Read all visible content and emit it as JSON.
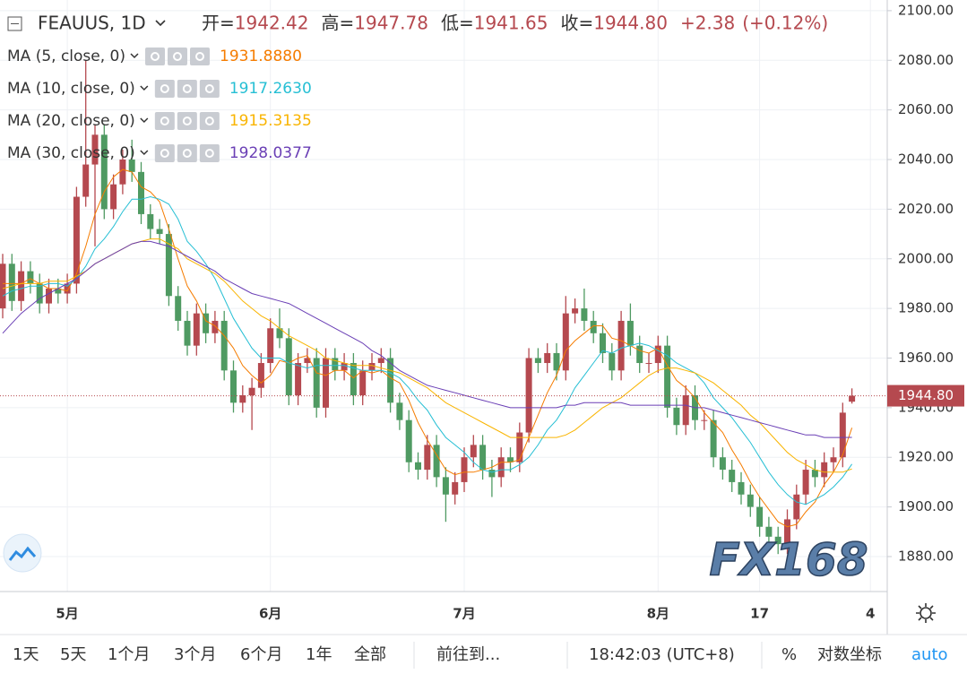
{
  "header": {
    "symbol": "FEAUUS, 1D",
    "fields": [
      {
        "label": "开=",
        "value": "1942.42"
      },
      {
        "label": "高=",
        "value": "1947.78"
      },
      {
        "label": "低=",
        "value": "1941.65"
      },
      {
        "label": "收=",
        "value": "1944.80"
      }
    ],
    "change": "+2.38",
    "change_pct": "(+0.12%)"
  },
  "toolbar": {
    "ranges": [
      "1天",
      "5天",
      "1个月",
      "3个月",
      "6个月",
      "1年",
      "全部"
    ],
    "goto": "前往到...",
    "time": "18:42:03 (UTC+8)",
    "percent": "%",
    "log": "对数坐标",
    "auto": "auto"
  },
  "watermark": "FX168",
  "chart_data": {
    "type": "candlestick",
    "categories": [
      null,
      null,
      null,
      null,
      null,
      null,
      null,
      "5月",
      null,
      null,
      null,
      null,
      null,
      null,
      null,
      null,
      null,
      null,
      null,
      null,
      null,
      null,
      null,
      null,
      null,
      null,
      null,
      null,
      null,
      "6月",
      null,
      null,
      null,
      null,
      null,
      null,
      null,
      null,
      null,
      null,
      null,
      null,
      null,
      null,
      null,
      null,
      null,
      null,
      null,
      null,
      "7月",
      null,
      null,
      null,
      null,
      null,
      null,
      null,
      null,
      null,
      null,
      null,
      null,
      null,
      null,
      null,
      null,
      null,
      null,
      null,
      null,
      "8月",
      null,
      null,
      null,
      null,
      null,
      null,
      null,
      null,
      null,
      null,
      "17",
      null,
      null,
      null,
      null,
      null,
      null,
      null,
      null,
      null,
      null,
      null,
      "4"
    ],
    "open": [
      1980,
      1998,
      1983,
      1995,
      1990,
      1982,
      1988,
      1986,
      1990,
      2025,
      2038,
      2050,
      2020,
      2030,
      2040,
      2035,
      2018,
      2012,
      2010,
      1985,
      1975,
      1965,
      1978,
      1970,
      1975,
      1955,
      1942,
      1945,
      1948,
      1958,
      1972,
      1968,
      1945,
      1958,
      1960,
      1940,
      1960,
      1955,
      1958,
      1945,
      1955,
      1958,
      1960,
      1942,
      1935,
      1918,
      1915,
      1925,
      1912,
      1905,
      1910,
      1920,
      1925,
      1915,
      1912,
      1920,
      1918,
      1930,
      1960,
      1958,
      1962,
      1955,
      1978,
      1980,
      1975,
      1970,
      1962,
      1955,
      1975,
      1965,
      1958,
      1958,
      1965,
      1940,
      1933,
      1945,
      1935,
      1935,
      1920,
      1915,
      1910,
      1905,
      1900,
      1892,
      1888,
      1885,
      1895,
      1905,
      1915,
      1912,
      1918,
      1920,
      1942.42,
      null,
      null
    ],
    "high": [
      2002,
      2002,
      1999,
      1999,
      1994,
      1992,
      1992,
      1994,
      2029,
      2080,
      2054,
      2054,
      2034,
      2044,
      2048,
      2039,
      2022,
      2016,
      2014,
      1989,
      1979,
      1982,
      1982,
      1979,
      1979,
      1959,
      1949,
      1952,
      1962,
      1976,
      1980,
      1972,
      1962,
      1964,
      1964,
      1964,
      1964,
      1962,
      1962,
      1959,
      1962,
      1964,
      1964,
      1946,
      1939,
      1922,
      1929,
      1929,
      1916,
      1914,
      1924,
      1929,
      1929,
      1919,
      1924,
      1924,
      1934,
      1964,
      1964,
      1966,
      1966,
      1985,
      1984,
      1988,
      1979,
      1974,
      1966,
      1979,
      1982,
      1969,
      1962,
      1969,
      1969,
      1944,
      1949,
      1949,
      1939,
      1939,
      1924,
      1919,
      1914,
      1909,
      1904,
      1896,
      1892,
      1899,
      1909,
      1919,
      1919,
      1922,
      1924,
      1942,
      1947.78,
      null,
      null
    ],
    "low": [
      1976,
      1979,
      1979,
      1986,
      1978,
      1978,
      1982,
      1982,
      1986,
      2021,
      2005,
      2016,
      2016,
      2026,
      2031,
      2014,
      2008,
      2006,
      1981,
      1971,
      1961,
      1961,
      1966,
      1966,
      1951,
      1938,
      1938,
      1931,
      1944,
      1954,
      1964,
      1941,
      1941,
      1954,
      1936,
      1936,
      1951,
      1951,
      1941,
      1941,
      1951,
      1954,
      1938,
      1931,
      1914,
      1911,
      1911,
      1908,
      1894,
      1901,
      1906,
      1916,
      1911,
      1904,
      1908,
      1914,
      1914,
      1926,
      1954,
      1954,
      1951,
      1951,
      1974,
      1971,
      1966,
      1958,
      1951,
      1951,
      1961,
      1954,
      1954,
      1954,
      1936,
      1929,
      1929,
      1931,
      1931,
      1916,
      1911,
      1906,
      1901,
      1896,
      1888,
      1884,
      1881,
      1881,
      1891,
      1901,
      1908,
      1908,
      1914,
      1916,
      1941.65,
      null,
      null
    ],
    "close": [
      1998,
      1983,
      1995,
      1990,
      1982,
      1988,
      1986,
      1990,
      2025,
      2038,
      2050,
      2020,
      2030,
      2040,
      2035,
      2018,
      2012,
      2010,
      1985,
      1975,
      1965,
      1978,
      1970,
      1975,
      1955,
      1942,
      1945,
      1948,
      1958,
      1972,
      1968,
      1945,
      1958,
      1960,
      1940,
      1960,
      1955,
      1958,
      1945,
      1955,
      1958,
      1960,
      1942,
      1935,
      1918,
      1915,
      1925,
      1912,
      1905,
      1910,
      1920,
      1925,
      1915,
      1912,
      1920,
      1918,
      1930,
      1960,
      1958,
      1962,
      1955,
      1978,
      1980,
      1975,
      1970,
      1962,
      1955,
      1975,
      1965,
      1958,
      1958,
      1965,
      1940,
      1933,
      1945,
      1935,
      1935,
      1920,
      1915,
      1910,
      1905,
      1900,
      1892,
      1888,
      1885,
      1895,
      1905,
      1915,
      1912,
      1918,
      1920,
      1938,
      1944.8,
      null,
      null
    ],
    "up_color": "#b5494f",
    "down_color": "#4f9a62",
    "series": [
      {
        "name": "MA (5, close, 0)",
        "color": "#f57c00",
        "legend_value": "1931.8880",
        "values": [
          1990,
          1990,
          1990,
          1992,
          1990,
          1988,
          1988,
          1987,
          1994,
          2005,
          2018,
          2027,
          2033,
          2036,
          2035,
          2029,
          2027,
          2023,
          2012,
          2000,
          1989,
          1983,
          1975,
          1973,
          1969,
          1964,
          1957,
          1953,
          1950,
          1953,
          1959,
          1958,
          1960,
          1961,
          1954,
          1953,
          1955,
          1955,
          1952,
          1955,
          1954,
          1955,
          1952,
          1950,
          1943,
          1934,
          1927,
          1921,
          1915,
          1913,
          1914,
          1914,
          1915,
          1916,
          1918,
          1918,
          1919,
          1928,
          1937,
          1946,
          1953,
          1963,
          1967,
          1970,
          1973,
          1973,
          1968,
          1967,
          1965,
          1963,
          1962,
          1964,
          1957,
          1951,
          1948,
          1944,
          1938,
          1934,
          1930,
          1923,
          1917,
          1910,
          1904,
          1899,
          1894,
          1892,
          1893,
          1898,
          1902,
          1909,
          1914,
          1921,
          1931.888,
          null,
          null
        ]
      },
      {
        "name": "MA (10, close, 0)",
        "color": "#26bfd4",
        "legend_value": "1917.2630",
        "values": [
          1985,
          1987,
          1988,
          1989,
          1989,
          1990,
          1990,
          1989,
          1992,
          1997,
          2004,
          2008,
          2013,
          2019,
          2024,
          2024,
          2025,
          2024,
          2022,
          2016,
          2007,
          2003,
          1998,
          1992,
          1984,
          1976,
          1970,
          1964,
          1960,
          1960,
          1960,
          1958,
          1957,
          1956,
          1957,
          1957,
          1957,
          1957,
          1956,
          1955,
          1955,
          1955,
          1954,
          1952,
          1948,
          1943,
          1939,
          1933,
          1928,
          1925,
          1922,
          1918,
          1915,
          1914,
          1915,
          1915,
          1917,
          1920,
          1925,
          1931,
          1935,
          1941,
          1948,
          1953,
          1958,
          1963,
          1962,
          1964,
          1965,
          1966,
          1965,
          1963,
          1961,
          1958,
          1956,
          1954,
          1950,
          1944,
          1940,
          1936,
          1931,
          1926,
          1920,
          1914,
          1909,
          1905,
          1902,
          1901,
          1903,
          1905,
          1908,
          1912,
          1917.263,
          null,
          null
        ]
      },
      {
        "name": "MA (20, close, 0)",
        "color": "#f9b400",
        "legend_value": "1915.3135",
        "values": [
          1988,
          1989,
          1990,
          1990,
          1990,
          1991,
          1991,
          1991,
          1993,
          1995,
          1998,
          2000,
          2002,
          2004,
          2006,
          2007,
          2008,
          2008,
          2006,
          2004,
          2000,
          1998,
          1996,
          1994,
          1991,
          1987,
          1983,
          1980,
          1977,
          1975,
          1972,
          1969,
          1967,
          1965,
          1963,
          1960,
          1959,
          1958,
          1957,
          1957,
          1957,
          1956,
          1955,
          1954,
          1952,
          1950,
          1948,
          1945,
          1942,
          1940,
          1938,
          1936,
          1934,
          1932,
          1930,
          1928,
          1928,
          1928,
          1928,
          1928,
          1928,
          1929,
          1931,
          1934,
          1937,
          1940,
          1942,
          1944,
          1947,
          1950,
          1953,
          1955,
          1956,
          1956,
          1955,
          1954,
          1952,
          1950,
          1947,
          1944,
          1941,
          1937,
          1934,
          1930,
          1926,
          1922,
          1919,
          1917,
          1915,
          1914,
          1914,
          1914,
          1915.3135,
          null,
          null
        ]
      },
      {
        "name": "MA (30, close, 0)",
        "color": "#6a3fb5",
        "legend_value": "1928.0377",
        "values": [
          1970,
          1974,
          1978,
          1981,
          1984,
          1986,
          1988,
          1990,
          1992,
          1995,
          1998,
          2000,
          2002,
          2004,
          2006,
          2007,
          2007,
          2006,
          2005,
          2003,
          2001,
          1999,
          1997,
          1995,
          1992,
          1990,
          1988,
          1986,
          1985,
          1984,
          1983,
          1982,
          1980,
          1978,
          1976,
          1974,
          1972,
          1970,
          1968,
          1966,
          1963,
          1961,
          1958,
          1955,
          1953,
          1951,
          1949,
          1948,
          1947,
          1946,
          1945,
          1944,
          1943,
          1942,
          1941,
          1940,
          1940,
          1940,
          1940,
          1940,
          1940,
          1941,
          1941,
          1942,
          1942,
          1942,
          1942,
          1942,
          1941,
          1941,
          1941,
          1941,
          1941,
          1941,
          1941,
          1940,
          1940,
          1939,
          1938,
          1937,
          1936,
          1935,
          1934,
          1933,
          1932,
          1931,
          1930,
          1929,
          1929,
          1928,
          1928,
          1928,
          1928.0377,
          null,
          null
        ]
      }
    ],
    "ylim": [
      1865.9,
      2104.3
    ],
    "yticks": [
      {
        "value": 1880,
        "label": "1880.00"
      },
      {
        "value": 1900,
        "label": "1900.00"
      },
      {
        "value": 1920,
        "label": "1920.00"
      },
      {
        "value": 1940,
        "label": "1940.00"
      },
      {
        "value": 1960,
        "label": "1960.00"
      },
      {
        "value": 1980,
        "label": "1980.00"
      },
      {
        "value": 2000,
        "label": "2000.00"
      },
      {
        "value": 2020,
        "label": "2020.00"
      },
      {
        "value": 2040,
        "label": "2040.00"
      },
      {
        "value": 2060,
        "label": "2060.00"
      },
      {
        "value": 2080,
        "label": "2080.00"
      },
      {
        "value": 2100,
        "label": "2100.00"
      }
    ],
    "grid": true,
    "last_price_label": "1944.80"
  }
}
